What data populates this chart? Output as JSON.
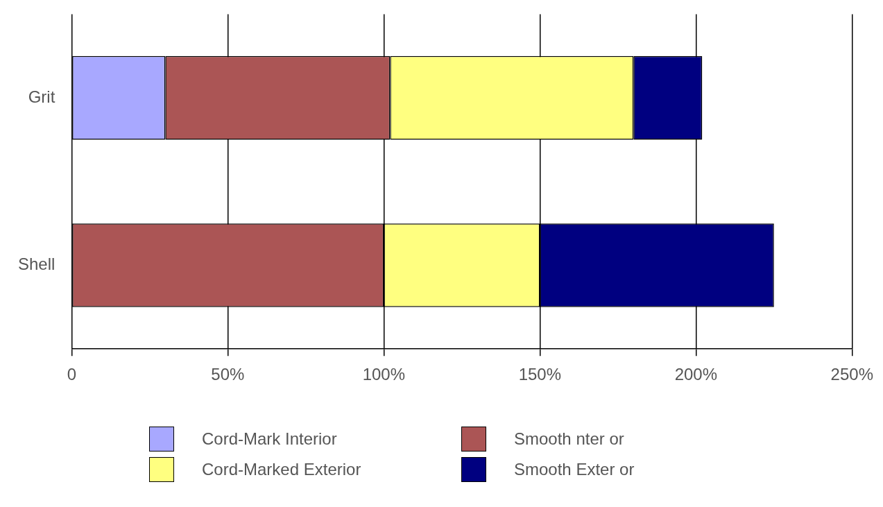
{
  "chart_data": {
    "type": "bar",
    "orientation": "horizontal",
    "stacked": true,
    "categories": [
      "Grit",
      "Shell"
    ],
    "series": [
      {
        "name": "Cord-Mark Interior",
        "color": "#a8a8ff",
        "values": [
          30,
          null
        ]
      },
      {
        "name": "Smooth  nter or",
        "color": "#ab5555",
        "values": [
          72,
          100
        ]
      },
      {
        "name": "Cord-Marked Exterior",
        "color": "#ffff80",
        "values": [
          78,
          50
        ]
      },
      {
        "name": "Smooth Exter or",
        "color": "#000080",
        "values": [
          22,
          75
        ]
      }
    ],
    "xlim": [
      0,
      250
    ],
    "xticks": [
      0,
      {
        "value": 50,
        "label": "50%"
      },
      {
        "value": 100,
        "label": "100%"
      },
      {
        "value": 150,
        "label": "150%"
      },
      {
        "value": 200,
        "label": "200%"
      },
      {
        "value": 250,
        "label": "250%"
      }
    ],
    "grid": "x",
    "legend": "bottom"
  }
}
